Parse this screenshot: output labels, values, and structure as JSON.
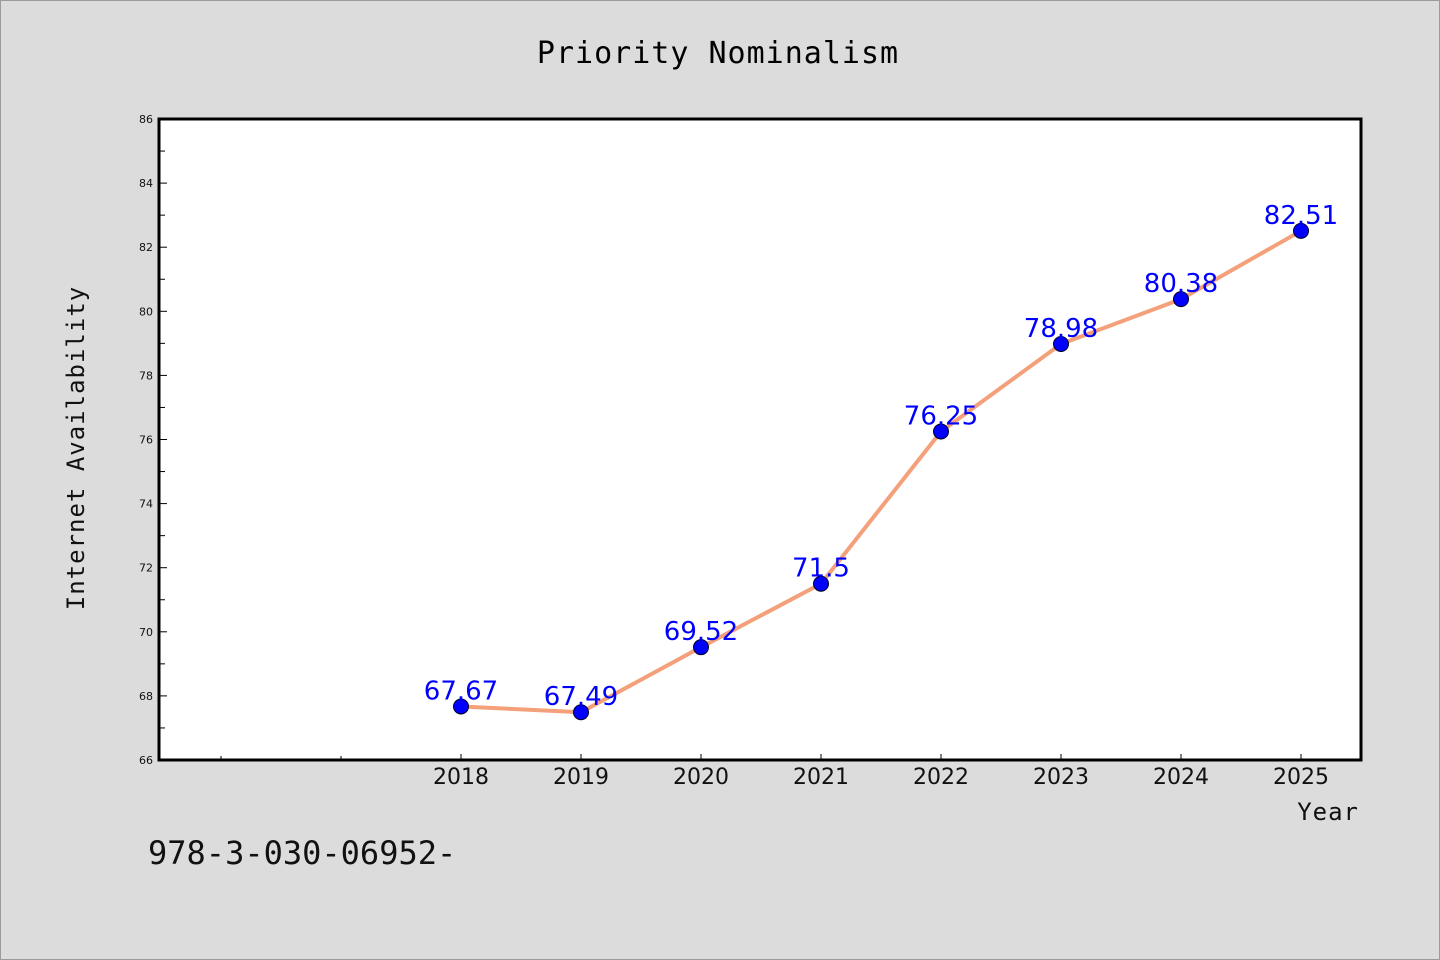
{
  "chart_data": {
    "type": "line",
    "title": "Priority Nominalism",
    "xlabel": "Year",
    "ylabel": "Internet Availability",
    "x": [
      "2018",
      "2019",
      "2020",
      "2021",
      "2022",
      "2023",
      "2024",
      "2025"
    ],
    "series": [
      {
        "values": [
          67.67,
          67.49,
          69.52,
          71.5,
          76.25,
          78.98,
          80.38,
          82.51
        ],
        "data_labels": [
          "67.67",
          "67.49",
          "69.52",
          "71.5",
          "76.25",
          "78.98",
          "80.38",
          "82.51"
        ],
        "line_color": "#f4a07a",
        "marker_color": "#0000ff"
      }
    ],
    "ylim": [
      66,
      86
    ],
    "yticks": [
      "66",
      "68",
      "70",
      "72",
      "74",
      "76",
      "78",
      "80",
      "82",
      "84",
      "86"
    ],
    "x_extra_ticks": 2,
    "grid": false,
    "legend": "none"
  },
  "footer_text": "978-3-030-06952-"
}
